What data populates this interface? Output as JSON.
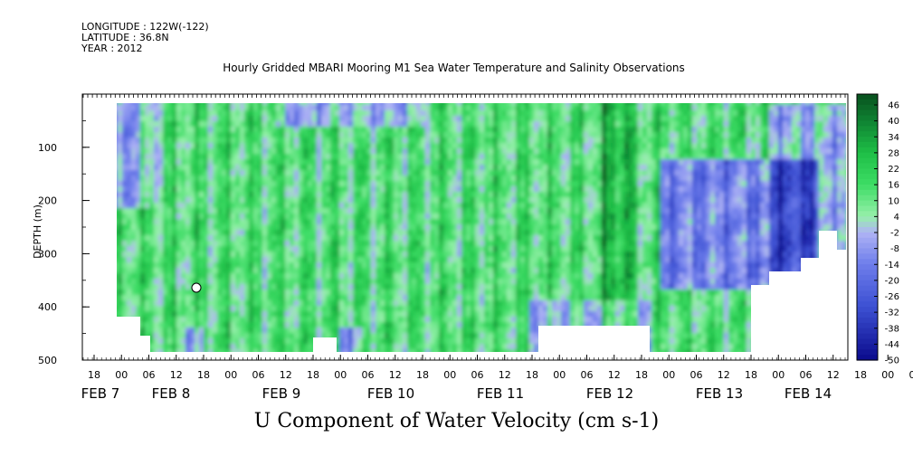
{
  "header": {
    "longitude": "LONGITUDE : 122W(-122)",
    "latitude": "LATITUDE : 36.8N",
    "year": "YEAR : 2012"
  },
  "chart_data": {
    "type": "heatmap",
    "title": "Hourly Gridded MBARI Mooring M1 Sea Water Temperature and Salinity Observations",
    "bottom_title": "U Component of Water Velocity (cm s-1)",
    "ylabel": "DEPTH (m)",
    "ylim": [
      500,
      0
    ],
    "y_ticks": [
      100,
      200,
      300,
      400,
      500
    ],
    "x_hour_ticks": [
      "18",
      "00",
      "06",
      "12",
      "18",
      "00",
      "06",
      "12",
      "18",
      "00",
      "06",
      "12",
      "18",
      "00",
      "06",
      "12",
      "18",
      "00",
      "06",
      "12",
      "18",
      "00",
      "06",
      "12",
      "18",
      "00",
      "06",
      "12",
      "18",
      "00",
      "06",
      "12"
    ],
    "x_date_labels": [
      "FEB  7",
      "FEB  8",
      "FEB  9",
      "FEB 10",
      "FEB 11",
      "FEB 12",
      "FEB 13",
      "FEB 14"
    ],
    "colorbar_ticks": [
      "46",
      "40",
      "34",
      "28",
      "22",
      "16",
      "10",
      "4",
      "-2",
      "-8",
      "-14",
      "-20",
      "-26",
      "-32",
      "-38",
      "-44",
      "-50"
    ],
    "colorbar_min": -50,
    "colorbar_max": 50,
    "grid": false,
    "legend_placement": "right"
  },
  "colors": {
    "strong_positive": "#0a6e28",
    "positive": "#28c846",
    "weak_positive": "#8ef0a0",
    "weak_negative": "#a8aaf0",
    "negative": "#5a6edc",
    "strong_negative": "#0a0a8c"
  }
}
